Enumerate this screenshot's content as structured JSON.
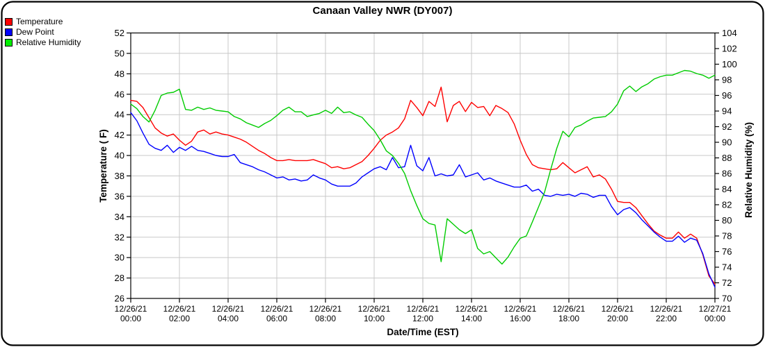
{
  "title": "Canaan Valley NWR (DY007)",
  "legend": {
    "items": [
      {
        "label": "Temperature",
        "color": "#ff0000"
      },
      {
        "label": "Dew Point",
        "color": "#0000ff"
      },
      {
        "label": "Relative Humidity",
        "color": "#00ee00"
      }
    ]
  },
  "chart_data": {
    "type": "line",
    "grid": true,
    "gridline_color": "#c8c8c8",
    "x_axis": {
      "label": "Date/Time (EST)",
      "start_hour": 0,
      "end_hour": 24,
      "tick_interval_hours": 2,
      "tick_labels": [
        [
          "12/26/21",
          "00:00"
        ],
        [
          "12/26/21",
          "02:00"
        ],
        [
          "12/26/21",
          "04:00"
        ],
        [
          "12/26/21",
          "06:00"
        ],
        [
          "12/26/21",
          "08:00"
        ],
        [
          "12/26/21",
          "10:00"
        ],
        [
          "12/26/21",
          "12:00"
        ],
        [
          "12/26/21",
          "14:00"
        ],
        [
          "12/26/21",
          "16:00"
        ],
        [
          "12/26/21",
          "18:00"
        ],
        [
          "12/26/21",
          "20:00"
        ],
        [
          "12/26/21",
          "22:00"
        ],
        [
          "12/27/21",
          "00:00"
        ]
      ]
    },
    "left_axis": {
      "label": "Temperature ( F)",
      "min": 26,
      "max": 52,
      "tick_step": 2
    },
    "right_axis": {
      "label": "Relative Humidity (%)",
      "min": 70,
      "max": 104,
      "tick_step": 2
    },
    "sample_interval_hours": 0.25,
    "series": [
      {
        "name": "Temperature",
        "axis": "left",
        "color": "#ff0000",
        "values": [
          45.4,
          45.3,
          44.7,
          43.7,
          42.7,
          42.2,
          41.9,
          42.1,
          41.5,
          41.0,
          41.4,
          42.3,
          42.5,
          42.1,
          42.3,
          42.1,
          42.0,
          41.8,
          41.6,
          41.3,
          40.9,
          40.5,
          40.2,
          39.8,
          39.5,
          39.5,
          39.6,
          39.5,
          39.5,
          39.5,
          39.6,
          39.4,
          39.2,
          38.8,
          38.9,
          38.7,
          38.8,
          39.1,
          39.4,
          40.0,
          40.7,
          41.5,
          42.0,
          42.3,
          42.7,
          43.6,
          45.4,
          44.7,
          43.9,
          45.3,
          44.8,
          46.7,
          43.3,
          44.9,
          45.3,
          44.3,
          45.2,
          44.7,
          44.8,
          43.9,
          44.9,
          44.6,
          44.2,
          43.1,
          41.5,
          40.1,
          39.1,
          38.8,
          38.7,
          38.6,
          38.7,
          39.3,
          38.8,
          38.3,
          38.6,
          38.9,
          37.9,
          38.1,
          37.7,
          36.7,
          35.5,
          35.4,
          35.4,
          34.9,
          34.1,
          33.3,
          32.6,
          32.2,
          31.9,
          31.9,
          32.5,
          31.9,
          32.3,
          31.9,
          30.3,
          28.2,
          27.4
        ]
      },
      {
        "name": "Dew Point",
        "axis": "left",
        "color": "#0000ff",
        "values": [
          44.2,
          43.4,
          42.2,
          41.1,
          40.7,
          40.5,
          41.0,
          40.3,
          40.8,
          40.5,
          40.9,
          40.5,
          40.4,
          40.2,
          40.0,
          39.9,
          39.9,
          40.1,
          39.3,
          39.1,
          38.9,
          38.6,
          38.4,
          38.1,
          37.8,
          37.9,
          37.6,
          37.7,
          37.5,
          37.6,
          38.1,
          37.8,
          37.6,
          37.2,
          37.0,
          37.0,
          37.0,
          37.3,
          37.9,
          38.3,
          38.7,
          38.9,
          38.6,
          39.8,
          38.8,
          38.9,
          41.0,
          39.0,
          38.5,
          39.8,
          38.0,
          38.2,
          38.0,
          38.1,
          39.1,
          37.9,
          38.1,
          38.3,
          37.6,
          37.8,
          37.5,
          37.3,
          37.1,
          36.9,
          36.9,
          37.1,
          36.5,
          36.7,
          36.1,
          36.0,
          36.2,
          36.1,
          36.2,
          36.0,
          36.3,
          36.2,
          35.9,
          36.1,
          36.1,
          35.0,
          34.2,
          34.7,
          34.9,
          34.4,
          33.7,
          33.1,
          32.5,
          32.0,
          31.6,
          31.6,
          32.1,
          31.5,
          31.9,
          31.7,
          30.4,
          28.4,
          27.1
        ]
      },
      {
        "name": "Relative Humidity",
        "axis": "right",
        "color": "#00cc00",
        "values": [
          94.9,
          94.3,
          93.3,
          92.6,
          94.1,
          96.0,
          96.3,
          96.4,
          96.8,
          94.2,
          94.1,
          94.5,
          94.2,
          94.4,
          94.1,
          94.0,
          93.9,
          93.3,
          93.0,
          92.5,
          92.2,
          91.9,
          92.4,
          92.8,
          93.4,
          94.1,
          94.5,
          93.9,
          93.9,
          93.3,
          93.5,
          93.7,
          94.1,
          93.7,
          94.5,
          93.8,
          93.9,
          93.5,
          93.2,
          92.3,
          91.5,
          90.3,
          88.9,
          88.3,
          87.3,
          86.0,
          83.8,
          81.9,
          80.2,
          79.6,
          79.4,
          74.7,
          80.2,
          79.5,
          78.8,
          78.3,
          78.8,
          76.4,
          75.7,
          76.0,
          75.2,
          74.4,
          75.3,
          76.6,
          77.7,
          78.0,
          79.8,
          81.7,
          83.6,
          86.5,
          89.2,
          91.4,
          90.7,
          91.9,
          92.2,
          92.7,
          93.1,
          93.2,
          93.3,
          93.9,
          94.9,
          96.6,
          97.2,
          96.5,
          97.1,
          97.5,
          98.1,
          98.4,
          98.6,
          98.6,
          98.9,
          99.2,
          99.1,
          98.8,
          98.6,
          98.2,
          98.6
        ]
      }
    ]
  }
}
